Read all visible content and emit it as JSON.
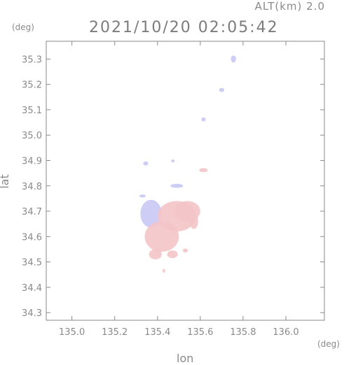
{
  "header": {
    "alt_label": "ALT(km) 2.0",
    "timestamp": "2021/10/20 02:05:42",
    "y_unit": "(deg)",
    "x_unit": "(deg)"
  },
  "chart_data": {
    "type": "heatmap",
    "title": "2021/10/20 02:05:42",
    "subtitle": "ALT(km) 2.0",
    "xlabel": "lon",
    "ylabel": "lat",
    "x_unit": "(deg)",
    "y_unit": "(deg)",
    "xlim": [
      134.88,
      136.18
    ],
    "ylim": [
      34.27,
      35.37
    ],
    "x_ticks": [
      135.0,
      135.2,
      135.4,
      135.6,
      135.8,
      136.0
    ],
    "x_tick_labels": [
      "135.0",
      "135.2",
      "135.4",
      "135.6",
      "135.8",
      "136.0"
    ],
    "y_ticks": [
      34.3,
      34.4,
      34.5,
      34.6,
      34.7,
      34.8,
      34.9,
      35.0,
      35.1,
      35.2,
      35.3
    ],
    "y_tick_labels": [
      "34.3",
      "34.4",
      "34.5",
      "34.6",
      "34.7",
      "34.8",
      "34.9",
      "35.0",
      "35.1",
      "35.2",
      "35.3"
    ],
    "grid": false,
    "colors": {
      "positive": "#f4c4c8",
      "negative": "#c8c8f4",
      "axis": "#8a8a8a"
    },
    "echo_patches": [
      {
        "lon": 135.755,
        "lat": 35.3,
        "r_lon": 0.012,
        "r_lat": 0.014,
        "sign": "negative"
      },
      {
        "lon": 135.7,
        "lat": 35.178,
        "r_lon": 0.012,
        "r_lat": 0.008,
        "sign": "negative"
      },
      {
        "lon": 135.615,
        "lat": 35.062,
        "r_lon": 0.01,
        "r_lat": 0.008,
        "sign": "negative"
      },
      {
        "lon": 135.472,
        "lat": 34.898,
        "r_lon": 0.008,
        "r_lat": 0.006,
        "sign": "negative"
      },
      {
        "lon": 135.345,
        "lat": 34.888,
        "r_lon": 0.012,
        "r_lat": 0.008,
        "sign": "negative"
      },
      {
        "lon": 135.615,
        "lat": 34.862,
        "r_lon": 0.02,
        "r_lat": 0.008,
        "sign": "positive"
      },
      {
        "lon": 135.49,
        "lat": 34.8,
        "r_lon": 0.03,
        "r_lat": 0.008,
        "sign": "negative"
      },
      {
        "lon": 135.37,
        "lat": 34.69,
        "r_lon": 0.05,
        "r_lat": 0.055,
        "sign": "negative"
      },
      {
        "lon": 135.49,
        "lat": 34.68,
        "r_lon": 0.09,
        "r_lat": 0.06,
        "sign": "positive"
      },
      {
        "lon": 135.42,
        "lat": 34.6,
        "r_lon": 0.08,
        "r_lat": 0.06,
        "sign": "positive"
      },
      {
        "lon": 135.54,
        "lat": 34.7,
        "r_lon": 0.06,
        "r_lat": 0.04,
        "sign": "positive"
      },
      {
        "lon": 135.39,
        "lat": 34.53,
        "r_lon": 0.03,
        "r_lat": 0.02,
        "sign": "positive"
      },
      {
        "lon": 135.47,
        "lat": 34.53,
        "r_lon": 0.025,
        "r_lat": 0.015,
        "sign": "positive"
      },
      {
        "lon": 135.53,
        "lat": 34.545,
        "r_lon": 0.012,
        "r_lat": 0.008,
        "sign": "positive"
      },
      {
        "lon": 135.43,
        "lat": 34.465,
        "r_lon": 0.006,
        "r_lat": 0.008,
        "sign": "positive"
      },
      {
        "lon": 135.33,
        "lat": 34.76,
        "r_lon": 0.015,
        "r_lat": 0.006,
        "sign": "negative"
      },
      {
        "lon": 135.57,
        "lat": 34.66,
        "r_lon": 0.02,
        "r_lat": 0.03,
        "sign": "positive"
      }
    ]
  }
}
